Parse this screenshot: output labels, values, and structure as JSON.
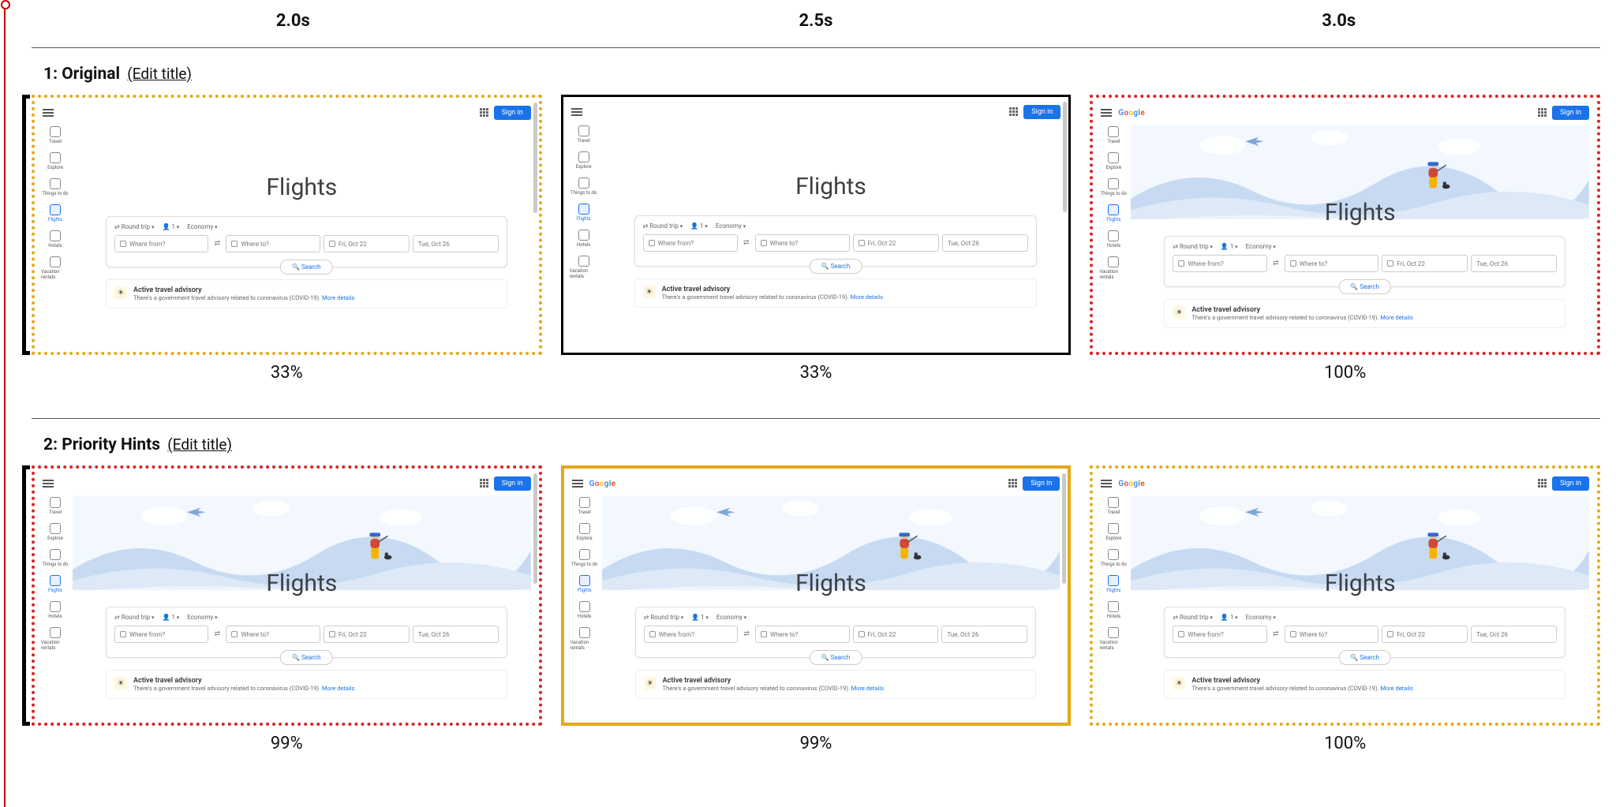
{
  "timeline": {
    "axis_color": "#cc0000",
    "times": [
      "2.0s",
      "2.5s",
      "3.0s"
    ]
  },
  "rows": [
    {
      "index": "1",
      "title": "Original",
      "edit_label": "(Edit title)",
      "frames": [
        {
          "pct": "33%",
          "border": "orange-dotted",
          "bracket": true,
          "hero": false,
          "logo": false,
          "scrollbar": true
        },
        {
          "pct": "33%",
          "border": "black-solid",
          "bracket": false,
          "hero": false,
          "logo": false,
          "scrollbar": true
        },
        {
          "pct": "100%",
          "border": "red-dotted",
          "bracket": false,
          "hero": true,
          "logo": true,
          "scrollbar": false
        }
      ]
    },
    {
      "index": "2",
      "title": "Priority Hints",
      "edit_label": "(Edit title)",
      "frames": [
        {
          "pct": "99%",
          "border": "red-dotted",
          "bracket": true,
          "hero": true,
          "logo": false,
          "scrollbar": true
        },
        {
          "pct": "99%",
          "border": "orange-solid",
          "bracket": false,
          "hero": true,
          "logo": true,
          "scrollbar": true
        },
        {
          "pct": "100%",
          "border": "orange-dotted",
          "bracket": false,
          "hero": true,
          "logo": true,
          "scrollbar": false
        }
      ]
    }
  ],
  "flights_ui": {
    "signin": "Sign in",
    "logo_text": "Google",
    "title": "Flights",
    "opts": {
      "trip": "Round trip",
      "pax": "1",
      "class": "Economy"
    },
    "fields": {
      "from_placeholder": "Where from?",
      "to_placeholder": "Where to?",
      "date1": "Fri, Oct 22",
      "date2": "Tue, Oct 26"
    },
    "search_btn": "Search",
    "advisory": {
      "heading": "Active travel advisory",
      "body_prefix": "There's a government travel advisory related to coronavirus (COVID-19).",
      "link": "More details"
    },
    "sidebar": [
      {
        "label": "Travel",
        "active": false
      },
      {
        "label": "Explore",
        "active": false
      },
      {
        "label": "Things to do",
        "active": false
      },
      {
        "label": "Flights",
        "active": true
      },
      {
        "label": "Hotels",
        "active": false
      },
      {
        "label": "Vacation rentals",
        "active": false
      }
    ]
  },
  "colors": {
    "orange": "#e6a817",
    "red": "#d92424",
    "black": "#000000",
    "signin_bg": "#1a73e8"
  }
}
